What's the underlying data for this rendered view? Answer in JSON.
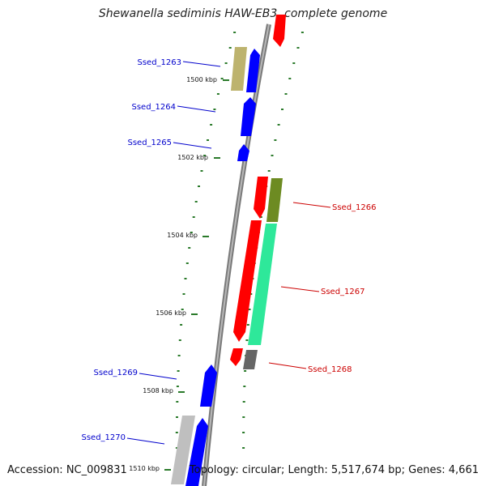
{
  "title": "Shewanella sediminis HAW-EB3, complete genome",
  "accession": "Accession: NC_009831",
  "summary": "Topology: circular; Length: 5,517,674 bp; Genes: 4,661",
  "colors": {
    "backbone": "#8c8c8c",
    "forward": "#0000ff",
    "reverse": "#ff0000",
    "tick": "#2a7a2a",
    "label_forward": "#0000cc",
    "label_reverse": "#cc0000"
  },
  "ruler": [
    {
      "label": "1500 kbp"
    },
    {
      "label": "1502 kbp"
    },
    {
      "label": "1504 kbp"
    },
    {
      "label": "1506 kbp"
    },
    {
      "label": "1508 kbp"
    },
    {
      "label": "1510 kbp"
    }
  ],
  "genes": [
    {
      "label": "Ssed_1263",
      "strand": "forward"
    },
    {
      "label": "Ssed_1264",
      "strand": "forward"
    },
    {
      "label": "Ssed_1265",
      "strand": "forward"
    },
    {
      "label": "Ssed_1266",
      "strand": "reverse"
    },
    {
      "label": "Ssed_1267",
      "strand": "reverse"
    },
    {
      "label": "Ssed_1268",
      "strand": "reverse"
    },
    {
      "label": "Ssed_1269",
      "strand": "forward"
    },
    {
      "label": "Ssed_1270",
      "strand": "forward"
    }
  ]
}
